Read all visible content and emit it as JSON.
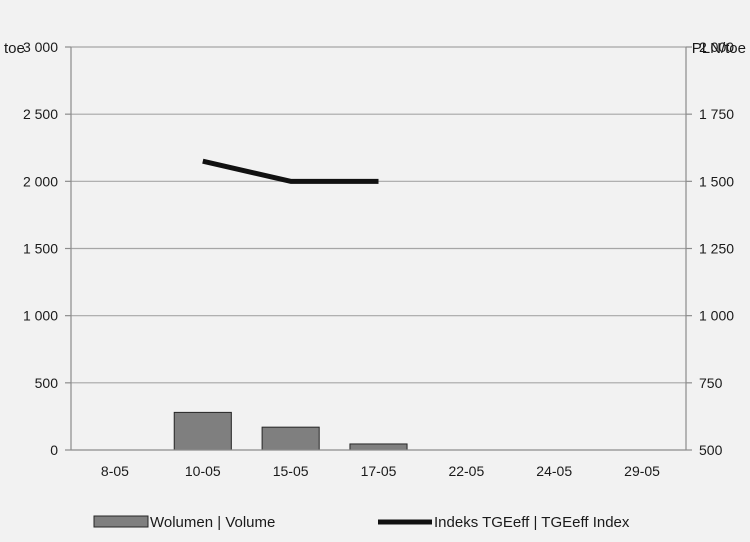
{
  "chart_data": {
    "type": "bar+line",
    "title": "",
    "categories": [
      "8-05",
      "10-05",
      "15-05",
      "17-05",
      "22-05",
      "24-05",
      "29-05"
    ],
    "y_left": {
      "label": "toe",
      "ylim": [
        0,
        3000
      ],
      "ticks": [
        0,
        500,
        1000,
        1500,
        2000,
        2500,
        3000
      ],
      "tick_labels": [
        "0",
        "500",
        "1 000",
        "1 500",
        "2 000",
        "2 500",
        "3 000"
      ]
    },
    "y_right": {
      "label": "PLN/toe",
      "ylim": [
        500,
        2000
      ],
      "ticks": [
        500,
        750,
        1000,
        1250,
        1500,
        1750,
        2000
      ],
      "tick_labels": [
        "500",
        "750",
        "1 000",
        "1 250",
        "1 500",
        "1 750",
        "2 000"
      ]
    },
    "series": [
      {
        "name": "Wolumen  |  Volume",
        "kind": "bar",
        "axis": "left",
        "color": "#7f7f7f",
        "values": [
          0,
          280,
          170,
          45,
          0,
          0,
          0
        ]
      },
      {
        "name": "Indeks TGEeff  |  TGEeff Index",
        "kind": "line",
        "axis": "right",
        "color": "#111111",
        "values": [
          null,
          1575,
          1500,
          1500,
          null,
          null,
          null
        ]
      }
    ],
    "grid": true,
    "legend_position": "bottom"
  }
}
